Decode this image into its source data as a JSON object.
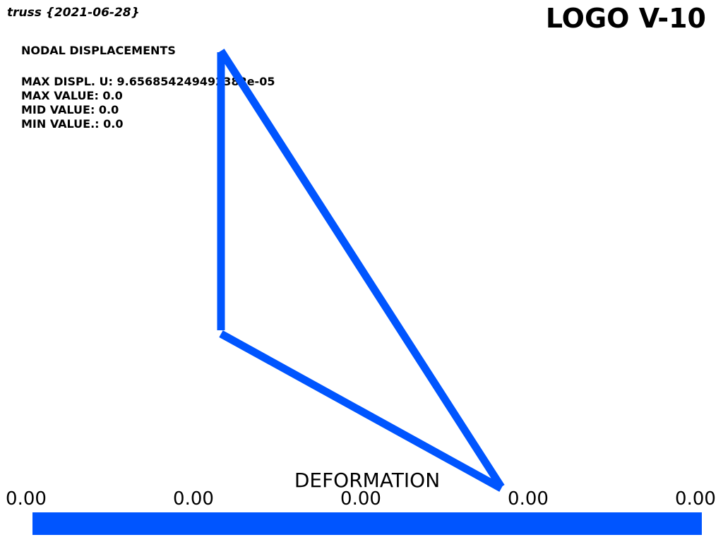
{
  "header": {
    "title": "truss {2021-06-28}",
    "logo": "LOGO V-10"
  },
  "info": {
    "heading": "NODAL DISPLACEMENTS",
    "max_displ": "MAX DISPL. U: 9.656854249492382e-05",
    "max_value": "MAX VALUE: 0.0",
    "mid_value": "MID VALUE: 0.0",
    "min_value": "MIN VALUE.: 0.0"
  },
  "scalar_bar": {
    "title": "DEFORMATION",
    "ticks": [
      "0.00",
      "0.00",
      "0.00",
      "0.00",
      "0.00"
    ],
    "color": "#0055ff"
  },
  "colors": {
    "member": "#0055ff",
    "background": "#ffffff"
  }
}
